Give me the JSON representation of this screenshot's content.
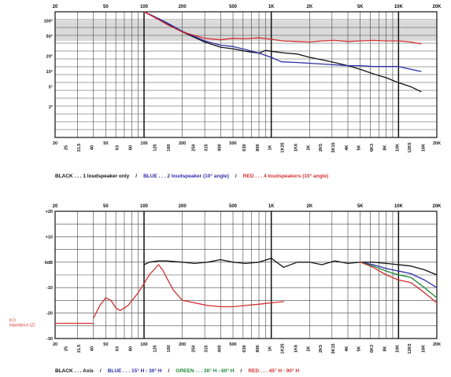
{
  "chart_data": [
    {
      "type": "line",
      "x_scale": "log",
      "xlim": [
        20,
        20000
      ],
      "y_scale": "log",
      "ylim": [
        0.5,
        150
      ],
      "top_ticks": [
        "20",
        "50",
        "100",
        "200",
        "500",
        "1K",
        "2K",
        "5K",
        "10K",
        "20K"
      ],
      "bottom_ticks": [
        "20",
        "25",
        "31.5",
        "40",
        "50",
        "63",
        "80",
        "100",
        "125",
        "160",
        "200",
        "250",
        "315",
        "400",
        "500",
        "630",
        "800",
        "1K",
        "1K25",
        "1K6",
        "2K",
        "2K5",
        "3K15",
        "4K",
        "5K",
        "6K3",
        "8K",
        "10K",
        "12K5",
        "16K",
        "20K"
      ],
      "y_ticks": [
        "100°",
        "50°",
        "20°",
        "10°",
        "5°",
        "2°"
      ],
      "y_tick_values": [
        100,
        50,
        20,
        10,
        5,
        2
      ],
      "grid": true,
      "series": [
        {
          "color": "#111111",
          "x": [
            100,
            130,
            150,
            200,
            300,
            400,
            500,
            630,
            800,
            900,
            1000,
            1300,
            1600,
            2000,
            2500,
            3150,
            4000,
            5000,
            6300,
            8000,
            10000,
            12500,
            15000
          ],
          "y": [
            150,
            110,
            90,
            60,
            38,
            30,
            28,
            25,
            23,
            26,
            25,
            23,
            22,
            19,
            17,
            15,
            13,
            11,
            9,
            7.5,
            6,
            5,
            4
          ]
        },
        {
          "color": "#2d2da8",
          "x": [
            100,
            130,
            150,
            200,
            300,
            400,
            500,
            630,
            800,
            1000,
            1200,
            1600,
            2000,
            2500,
            3150,
            4000,
            5000,
            6300,
            8000,
            10000,
            12500,
            15000
          ],
          "y": [
            150,
            110,
            92,
            62,
            40,
            33,
            31,
            27,
            23,
            19,
            15.5,
            15,
            14.5,
            14,
            13.5,
            13,
            13,
            12.5,
            12.5,
            12.5,
            11,
            10
          ]
        },
        {
          "color": "#d32f2f",
          "x": [
            100,
            130,
            150,
            200,
            300,
            400,
            500,
            630,
            800,
            1000,
            1250,
            1600,
            2000,
            2500,
            3150,
            4000,
            5000,
            6300,
            8000,
            10000,
            12500,
            15000
          ],
          "y": [
            150,
            105,
            85,
            60,
            45,
            42,
            45,
            44,
            46,
            43,
            40,
            39,
            38,
            40,
            41,
            39,
            40,
            41,
            40,
            40,
            38,
            35
          ]
        }
      ]
    },
    {
      "type": "line",
      "x_scale": "log",
      "xlim": [
        20,
        20000
      ],
      "ylim": [
        -30,
        20
      ],
      "top_ticks": [
        "20",
        "50",
        "100",
        "200",
        "500",
        "1K",
        "2K",
        "5K",
        "10K",
        "20K"
      ],
      "bottom_ticks": [
        "20",
        "25",
        "31.5",
        "40",
        "50",
        "63",
        "80",
        "100",
        "125",
        "160",
        "200",
        "250",
        "315",
        "400",
        "500",
        "630",
        "800",
        "1K",
        "1K25",
        "1K6",
        "2K",
        "2K5",
        "3K15",
        "4K",
        "5K",
        "6K3",
        "8K",
        "10K",
        "12K5",
        "16K",
        "20K"
      ],
      "y_ticks": [
        "+20",
        "+10",
        "0dB",
        "-10",
        "-20",
        "-30"
      ],
      "y_tick_values": [
        20,
        10,
        0,
        -10,
        -20,
        -30
      ],
      "grid": true,
      "annotation": [
        "8 Ω",
        "impedance (Z)"
      ],
      "series": [
        {
          "color": "#111111",
          "x": [
            100,
            110,
            130,
            150,
            200,
            250,
            315,
            400,
            500,
            630,
            800,
            1000,
            1250,
            1600,
            2000,
            2500,
            3150,
            4000,
            5000,
            6300,
            8000,
            10000,
            12500,
            16000,
            20000
          ],
          "y": [
            -1,
            0,
            0.5,
            0.5,
            0,
            -0.5,
            0,
            1,
            0,
            -0.5,
            0,
            1.5,
            -2,
            0,
            0,
            -1,
            0.5,
            -0.5,
            0,
            0,
            -0.5,
            -1,
            -1.5,
            -3,
            -5
          ]
        },
        {
          "color": "#2d2da8",
          "x": [
            5000,
            6300,
            8000,
            10000,
            12500,
            16000,
            20000
          ],
          "y": [
            0,
            -1,
            -2.5,
            -3.5,
            -4.5,
            -7,
            -10
          ]
        },
        {
          "color": "#1e8a36",
          "x": [
            5000,
            6300,
            8000,
            10000,
            12500,
            16000,
            20000
          ],
          "y": [
            0,
            -1.5,
            -3.5,
            -5,
            -6,
            -10,
            -14
          ]
        },
        {
          "color": "#d32f2f",
          "x": [
            5000,
            6300,
            8000,
            10000,
            12500,
            16000,
            20000
          ],
          "y": [
            0,
            -2,
            -5,
            -7,
            -8,
            -12,
            -16
          ]
        },
        {
          "color": "#d32f2f",
          "x": [
            40,
            45,
            50,
            55,
            60,
            65,
            75,
            90,
            110,
            130,
            140,
            150,
            170,
            200,
            250,
            315,
            400,
            500,
            630,
            800,
            1000,
            1250
          ],
          "y": [
            -22,
            -17,
            -14,
            -15,
            -18,
            -19,
            -17,
            -12,
            -5,
            -1,
            -3,
            -6,
            -11,
            -15,
            -16,
            -17,
            -17.5,
            -17.5,
            -17,
            -16.5,
            -16,
            -15.5
          ]
        },
        {
          "color": "#d32f2f",
          "x": [
            20,
            40
          ],
          "y": [
            -24,
            -24
          ]
        }
      ]
    }
  ],
  "legend1": [
    {
      "text": "BLACK . . . 1 loudspeaker only",
      "color": "#111111"
    },
    {
      "text": "/",
      "color": "#111111"
    },
    {
      "text": "BLUE . . . 2 loudspeaker (10° angle)",
      "color": "#2d2da8"
    },
    {
      "text": "/",
      "color": "#111111"
    },
    {
      "text": "RED . . . 4 loudspeakers (10° angle)",
      "color": "#d32f2f"
    }
  ],
  "legend2": [
    {
      "text": "BLACK . . . Axis",
      "color": "#111111"
    },
    {
      "text": "/",
      "color": "#111111"
    },
    {
      "text": "BLUE . . . 15° H - 30° H",
      "color": "#2d2da8"
    },
    {
      "text": "/",
      "color": "#111111"
    },
    {
      "text": "GREEN . . . 30° H - 60° H",
      "color": "#1e8a36"
    },
    {
      "text": "/",
      "color": "#111111"
    },
    {
      "text": "RED . . . 45° H - 90° H",
      "color": "#d32f2f"
    }
  ]
}
